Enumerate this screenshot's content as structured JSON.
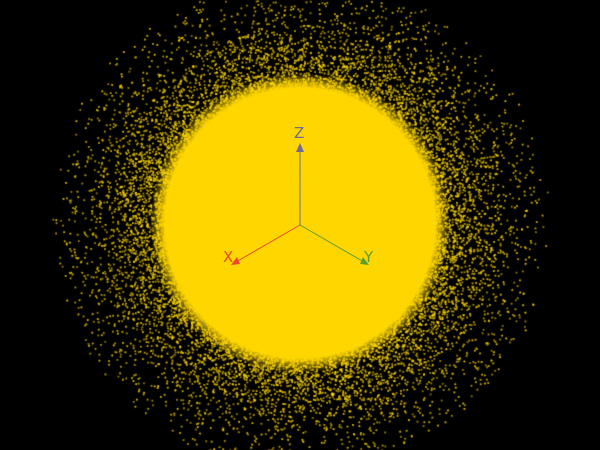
{
  "scene": {
    "background_color": "#000000",
    "point_color": "#FFD700",
    "point_count_estimate": 30000
  },
  "axes": {
    "x": {
      "label": "X",
      "color": "#E8492B"
    },
    "y": {
      "label": "Y",
      "color": "#5C9E2E"
    },
    "z": {
      "label": "Z",
      "color": "#6E6A9A"
    }
  }
}
